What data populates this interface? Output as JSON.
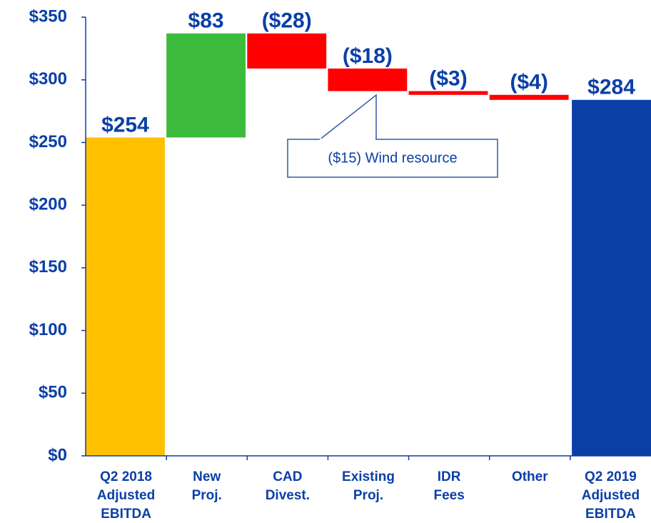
{
  "chart_data": {
    "type": "waterfall",
    "categories": [
      [
        "Q2 2018",
        "Adjusted",
        "EBITDA"
      ],
      [
        "New",
        "Proj."
      ],
      [
        "CAD",
        "Divest."
      ],
      [
        "Existing",
        "Proj."
      ],
      [
        "IDR",
        "Fees"
      ],
      [
        "Other"
      ],
      [
        "Q2 2019",
        "Adjusted",
        "EBITDA"
      ]
    ],
    "values": [
      254,
      83,
      -28,
      -18,
      -3,
      -4,
      284
    ],
    "value_labels": [
      "$254",
      "$83",
      "($28)",
      "($18)",
      "($3)",
      "($4)",
      "$284"
    ],
    "colors": [
      "#ffc000",
      "#3dbb3d",
      "#ff0000",
      "#ff0000",
      "#ff0000",
      "#ff0000",
      "#0a3fa6"
    ],
    "ylim": [
      0,
      350
    ],
    "yticks": [
      {
        "value": 0,
        "label": "$0"
      },
      {
        "value": 50,
        "label": "$50"
      },
      {
        "value": 100,
        "label": "$100"
      },
      {
        "value": 150,
        "label": "$150"
      },
      {
        "value": 200,
        "label": "$200"
      },
      {
        "value": 250,
        "label": "$250"
      },
      {
        "value": 300,
        "label": "$300"
      },
      {
        "value": 350,
        "label": "$350"
      }
    ],
    "annotation": "($15) Wind resource"
  }
}
